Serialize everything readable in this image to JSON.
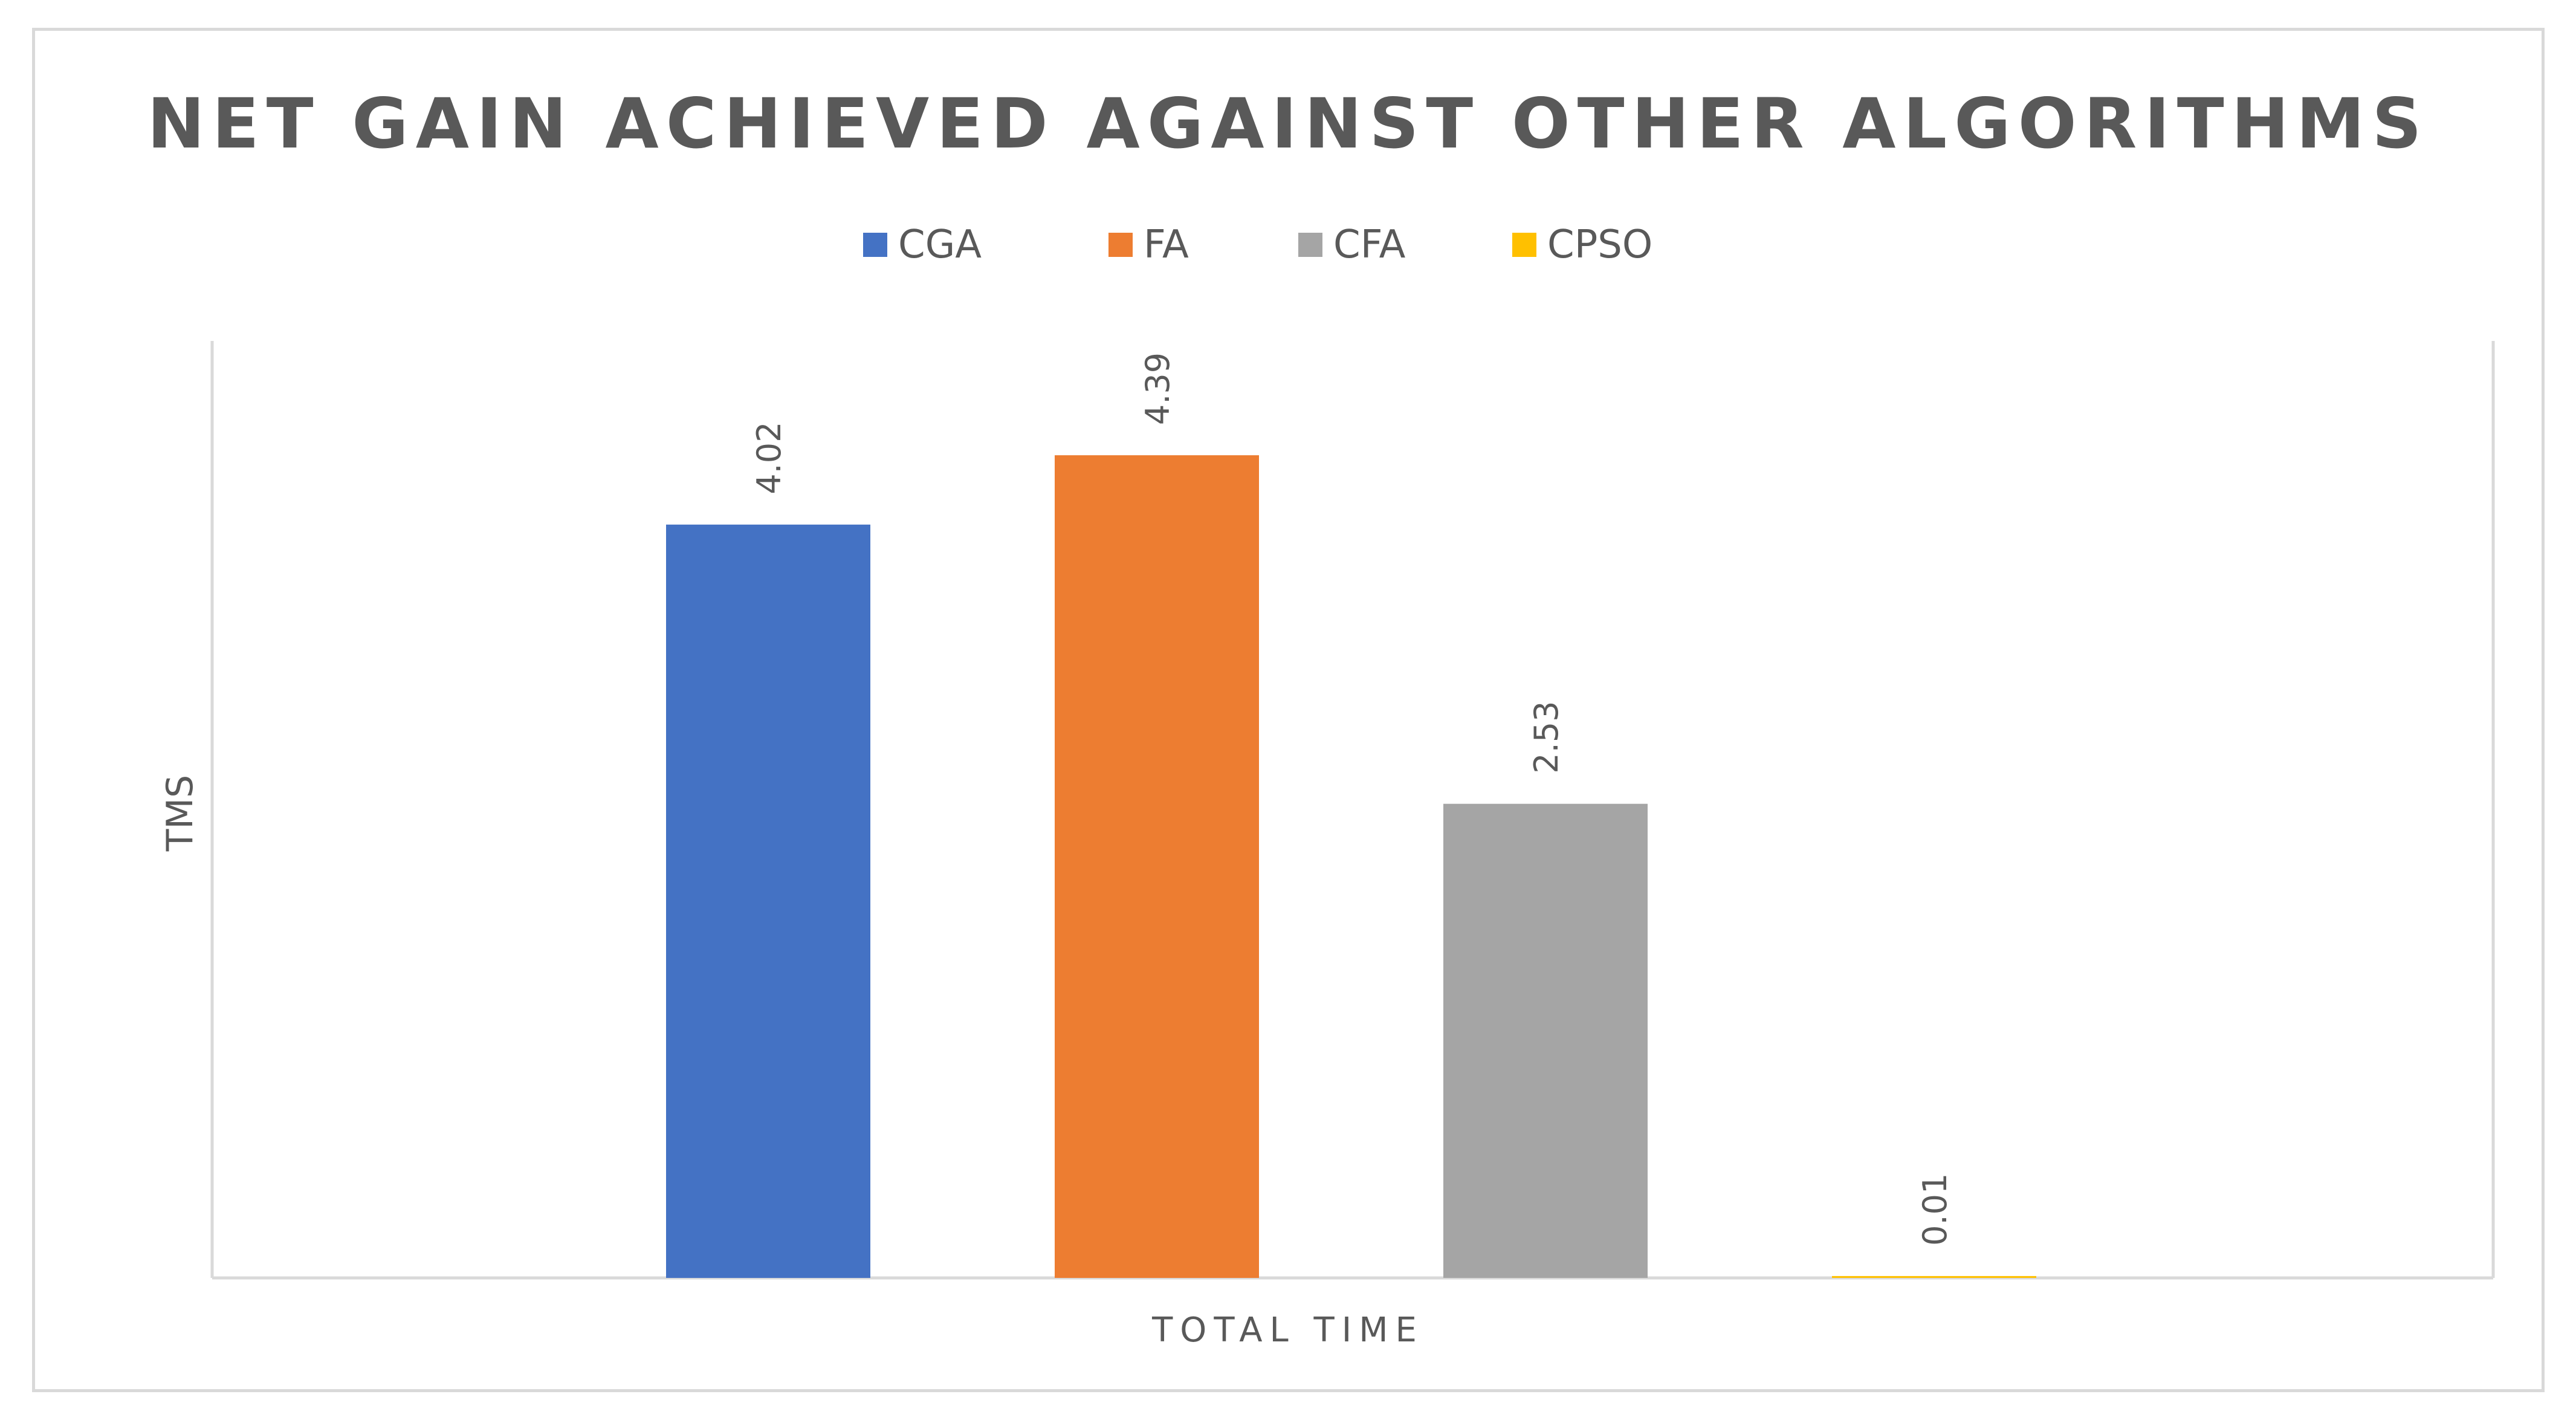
{
  "chart_data": {
    "type": "bar",
    "title": "NET GAIN ACHIEVED AGAINST OTHER ALGORITHMS",
    "xlabel": "TOTAL TIME",
    "ylabel": "TMS",
    "categories": [
      "TOTAL TIME"
    ],
    "ylim": [
      0,
      5
    ],
    "grid": false,
    "legend_position": "top",
    "data_labels": [
      "4.02",
      "4.39",
      "2.53",
      "0.01"
    ],
    "series": [
      {
        "name": "CGA",
        "values": [
          4.02
        ],
        "color": "#4472c4"
      },
      {
        "name": "FA",
        "values": [
          4.39
        ],
        "color": "#ed7d31"
      },
      {
        "name": "CFA",
        "values": [
          2.53
        ],
        "color": "#a5a5a5"
      },
      {
        "name": "CPSO",
        "values": [
          0.01
        ],
        "color": "#ffc000"
      }
    ]
  }
}
